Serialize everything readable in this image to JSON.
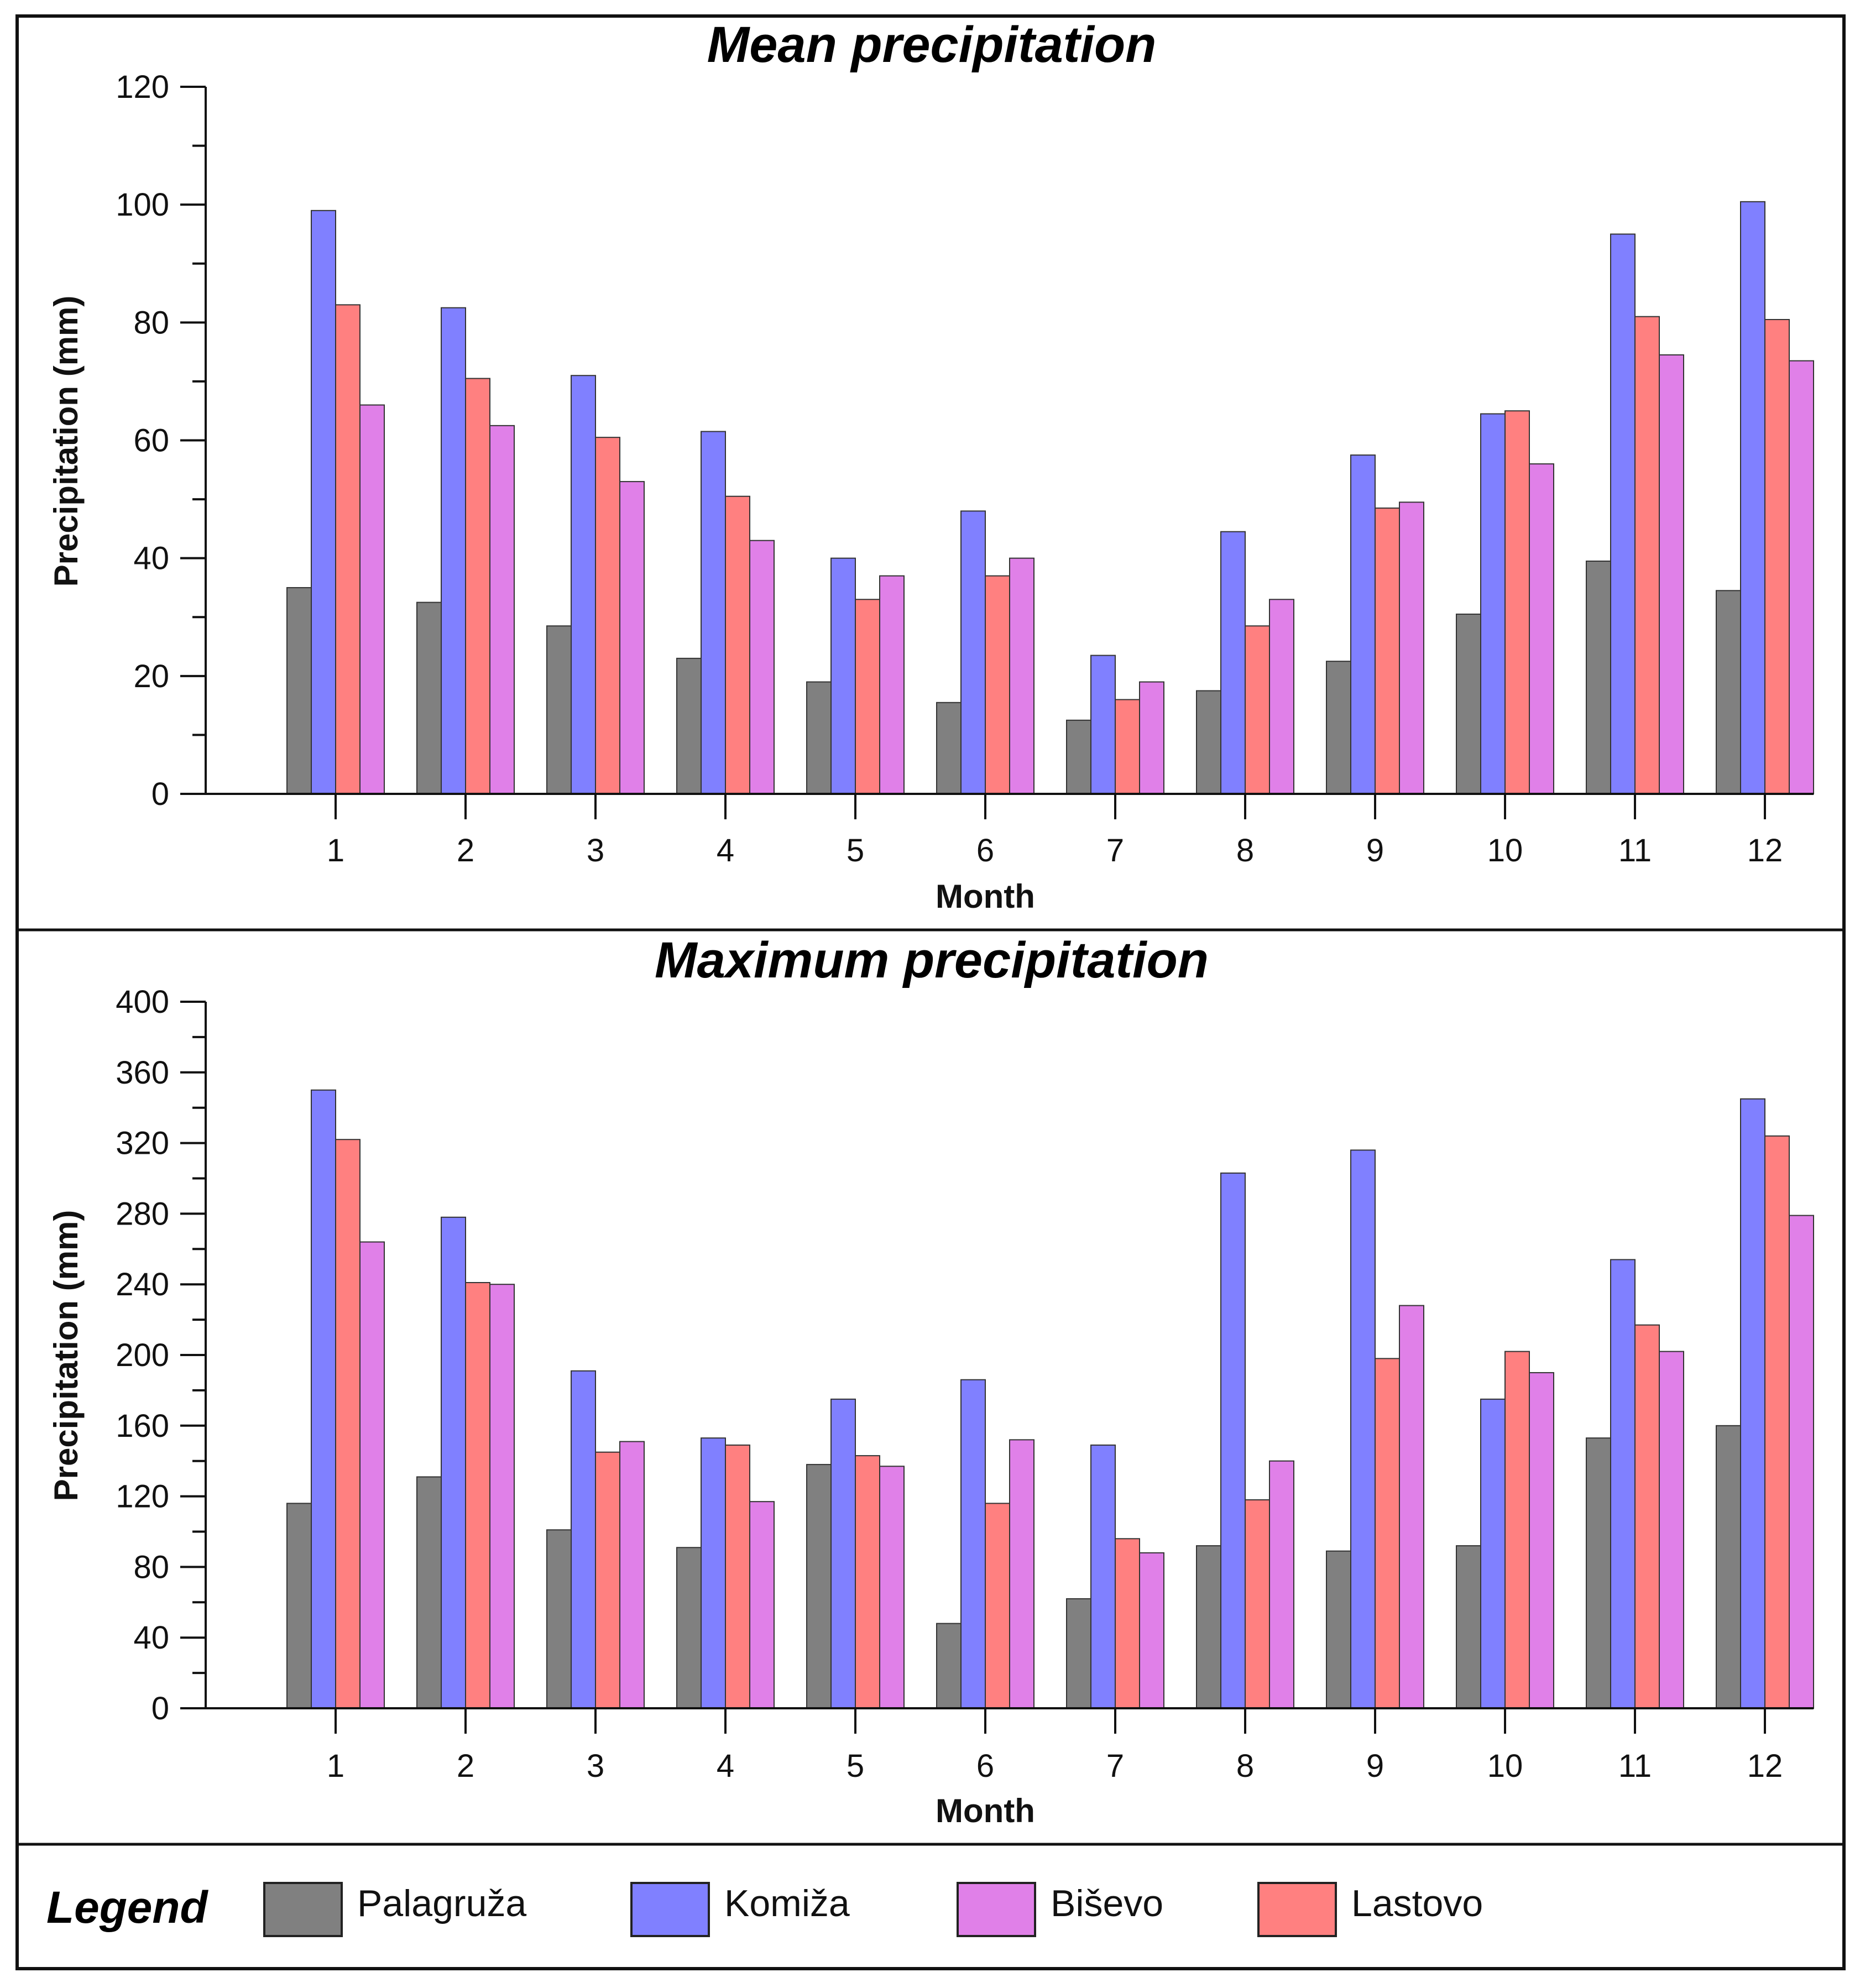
{
  "chart_data": [
    {
      "type": "bar",
      "title": "Mean precipitation",
      "xlabel": "Month",
      "ylabel": "Precipitation (mm)",
      "ylim": [
        0,
        120
      ],
      "yticks": [
        0,
        20,
        40,
        60,
        80,
        100,
        120
      ],
      "categories": [
        "1",
        "2",
        "3",
        "4",
        "5",
        "6",
        "7",
        "8",
        "9",
        "10",
        "11",
        "12"
      ],
      "series": [
        {
          "name": "Palagruža",
          "color": "#808080",
          "values": [
            35,
            32.5,
            28.5,
            23,
            19,
            15.5,
            12.5,
            17.5,
            22.5,
            30.5,
            39.5,
            34.5
          ]
        },
        {
          "name": "Komiža",
          "color": "#8080ff",
          "values": [
            99,
            82.5,
            71,
            61.5,
            40,
            48,
            23.5,
            44.5,
            57.5,
            64.5,
            95,
            100.5
          ]
        },
        {
          "name": "Lastovo",
          "color": "#ff8080",
          "values": [
            83,
            70.5,
            60.5,
            50.5,
            33,
            37,
            16,
            28.5,
            48.5,
            65,
            81,
            80.5
          ]
        },
        {
          "name": "Biševo",
          "color": "#e080e8",
          "values": [
            66,
            62.5,
            53,
            43,
            37,
            40,
            19,
            33,
            49.5,
            56,
            74.5,
            73.5
          ]
        }
      ]
    },
    {
      "type": "bar",
      "title": "Maximum precipitation",
      "xlabel": "Month",
      "ylabel": "Precipitation (mm)",
      "ylim": [
        0,
        400
      ],
      "yticks": [
        0,
        40,
        80,
        120,
        160,
        200,
        240,
        280,
        320,
        360,
        400
      ],
      "categories": [
        "1",
        "2",
        "3",
        "4",
        "5",
        "6",
        "7",
        "8",
        "9",
        "10",
        "11",
        "12"
      ],
      "series": [
        {
          "name": "Palagruža",
          "color": "#808080",
          "values": [
            116,
            131,
            101,
            91,
            138,
            48,
            62,
            92,
            89,
            92,
            153,
            160
          ]
        },
        {
          "name": "Komiža",
          "color": "#8080ff",
          "values": [
            350,
            278,
            191,
            153,
            175,
            186,
            149,
            303,
            316,
            175,
            254,
            345
          ]
        },
        {
          "name": "Lastovo",
          "color": "#ff8080",
          "values": [
            322,
            241,
            145,
            149,
            143,
            116,
            96,
            118,
            198,
            202,
            217,
            324
          ]
        },
        {
          "name": "Biševo",
          "color": "#e080e8",
          "values": [
            264,
            240,
            151,
            117,
            137,
            152,
            88,
            140,
            228,
            190,
            202,
            279
          ]
        }
      ]
    }
  ],
  "legend": {
    "title": "Legend",
    "items": [
      {
        "label": "Palagruža",
        "color": "#808080"
      },
      {
        "label": "Komiža",
        "color": "#8080ff"
      },
      {
        "label": "Biševo",
        "color": "#e080e8"
      },
      {
        "label": "Lastovo",
        "color": "#ff8080"
      }
    ]
  }
}
